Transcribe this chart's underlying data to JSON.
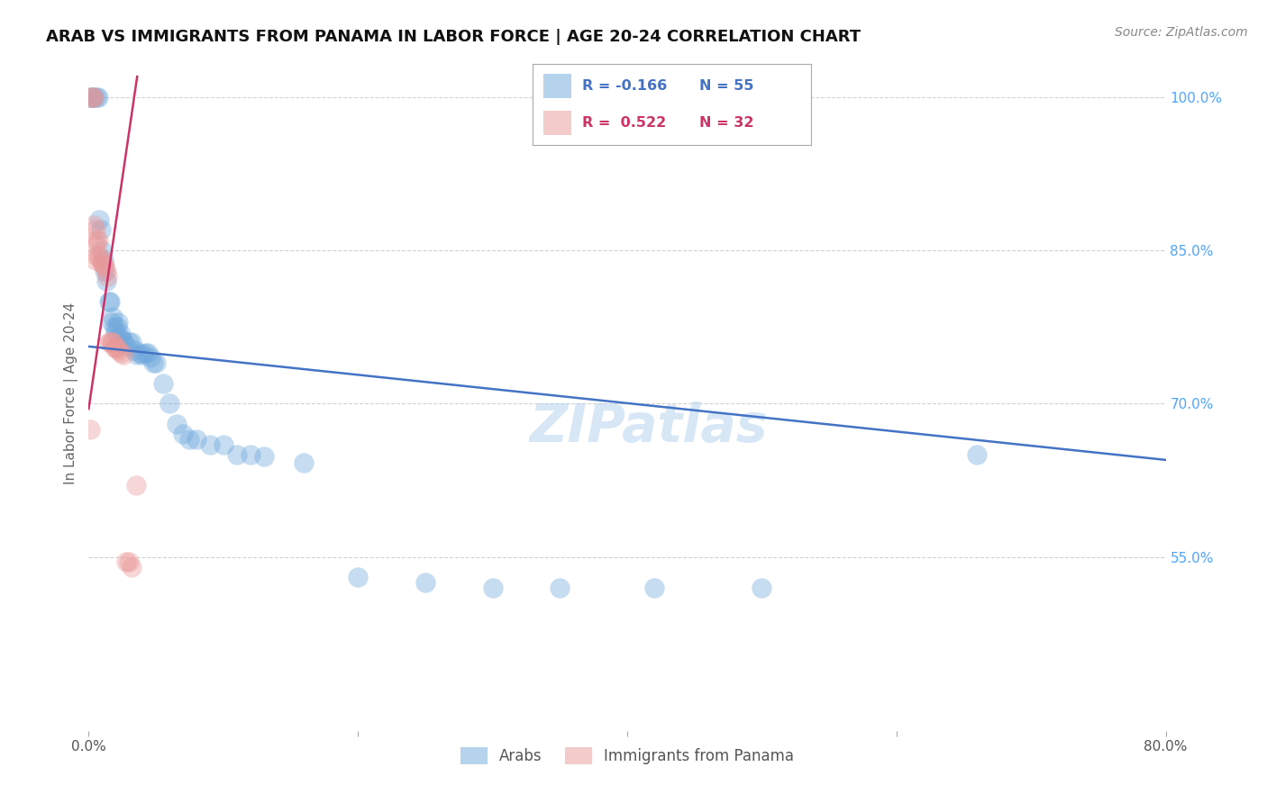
{
  "title": "ARAB VS IMMIGRANTS FROM PANAMA IN LABOR FORCE | AGE 20-24 CORRELATION CHART",
  "source": "Source: ZipAtlas.com",
  "ylabel": "In Labor Force | Age 20-24",
  "xlim": [
    0.0,
    0.8
  ],
  "ylim": [
    0.38,
    1.04
  ],
  "yticks_right": [
    0.55,
    0.7,
    0.85,
    1.0
  ],
  "yticklabels_right": [
    "55.0%",
    "70.0%",
    "85.0%",
    "100.0%"
  ],
  "arab_color": "#6fa8dc",
  "panama_color": "#ea9999",
  "arab_line_color": "#4472c4",
  "panama_line_color": "#cc3366",
  "arab_R": -0.166,
  "arab_N": 55,
  "panama_R": 0.522,
  "panama_N": 32,
  "legend_arab_label": "Arabs",
  "legend_panama_label": "Immigrants from Panama",
  "background_color": "#ffffff",
  "grid_color": "#cccccc",
  "arab_x": [
    0.001,
    0.002,
    0.003,
    0.004,
    0.006,
    0.007,
    0.008,
    0.009,
    0.01,
    0.011,
    0.012,
    0.013,
    0.015,
    0.016,
    0.017,
    0.018,
    0.019,
    0.02,
    0.021,
    0.022,
    0.023,
    0.024,
    0.025,
    0.026,
    0.028,
    0.03,
    0.032,
    0.034,
    0.036,
    0.038,
    0.04,
    0.042,
    0.044,
    0.046,
    0.048,
    0.05,
    0.055,
    0.06,
    0.065,
    0.07,
    0.075,
    0.08,
    0.09,
    0.1,
    0.11,
    0.12,
    0.13,
    0.16,
    0.2,
    0.25,
    0.3,
    0.35,
    0.42,
    0.5,
    0.66
  ],
  "arab_y": [
    1.0,
    1.0,
    1.0,
    1.0,
    1.0,
    1.0,
    0.88,
    0.87,
    0.85,
    0.84,
    0.83,
    0.82,
    0.8,
    0.8,
    0.78,
    0.785,
    0.775,
    0.77,
    0.775,
    0.78,
    0.765,
    0.768,
    0.762,
    0.76,
    0.757,
    0.76,
    0.76,
    0.752,
    0.748,
    0.75,
    0.748,
    0.75,
    0.75,
    0.745,
    0.74,
    0.74,
    0.72,
    0.7,
    0.68,
    0.67,
    0.665,
    0.665,
    0.66,
    0.66,
    0.65,
    0.65,
    0.648,
    0.642,
    0.53,
    0.525,
    0.52,
    0.52,
    0.52,
    0.52,
    0.65
  ],
  "panama_x": [
    0.001,
    0.002,
    0.003,
    0.004,
    0.004,
    0.005,
    0.005,
    0.005,
    0.006,
    0.006,
    0.007,
    0.008,
    0.009,
    0.01,
    0.011,
    0.012,
    0.013,
    0.014,
    0.015,
    0.016,
    0.017,
    0.018,
    0.019,
    0.02,
    0.021,
    0.022,
    0.024,
    0.026,
    0.028,
    0.03,
    0.032,
    0.035
  ],
  "panama_y": [
    0.675,
    1.0,
    1.0,
    1.0,
    0.875,
    0.87,
    0.855,
    0.84,
    0.845,
    0.86,
    0.86,
    0.845,
    0.84,
    0.838,
    0.835,
    0.835,
    0.83,
    0.825,
    0.76,
    0.76,
    0.76,
    0.76,
    0.755,
    0.755,
    0.755,
    0.752,
    0.75,
    0.748,
    0.545,
    0.545,
    0.54,
    0.62
  ],
  "arab_trend_x0": 0.0,
  "arab_trend_y0": 0.756,
  "arab_trend_x1": 0.8,
  "arab_trend_y1": 0.645,
  "panama_trend_x0": 0.0,
  "panama_trend_y0": 0.695,
  "panama_trend_x1": 0.036,
  "panama_trend_y1": 1.02
}
